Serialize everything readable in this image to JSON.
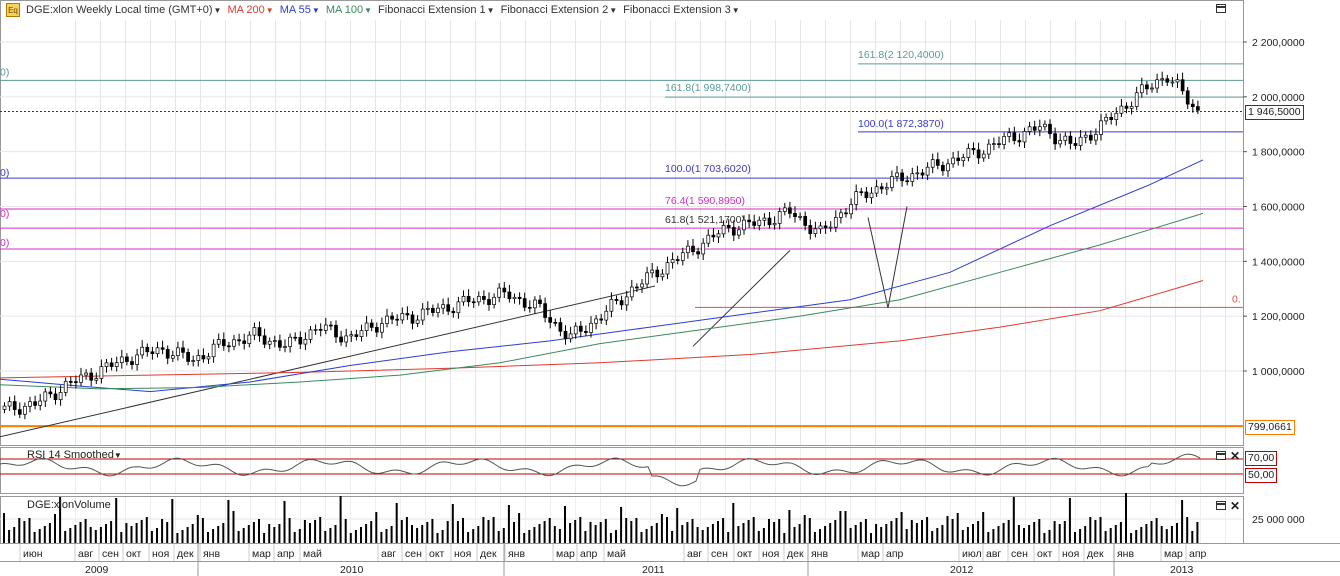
{
  "toolbar": {
    "symbol_label": "DGE:xlon Weekly Local time (GMT+0)",
    "ma200_label": "MA 200",
    "ma55_label": "MA 55",
    "ma100_label": "MA 100",
    "fib1_label": "Fibonacci Extension 1",
    "fib2_label": "Fibonacci Extension 2",
    "fib3_label": "Fibonacci Extension 3",
    "logo": "Eq"
  },
  "colors": {
    "ma200": "#e03a2f",
    "ma55": "#2a3fd1",
    "ma100": "#3a8a5a",
    "candle": "#000000",
    "last_price": "#c00000",
    "support": "#ff7a00",
    "rsi_line": "#555555",
    "rsi_levels": "#c00000",
    "fib_teal": "#5a9a9a",
    "fib_blue": "#3a3ad0",
    "fib_magenta": "#d030c0",
    "fib_red": "#e05040"
  },
  "price_axis": {
    "ticks": [
      "2 200,0000",
      "2 000,0000",
      "1 800,0000",
      "1 600,0000",
      "1 400,0000",
      "1 200,0000",
      "1 000,0000"
    ],
    "last_price": "1 946,5000",
    "support_price": "799,0661"
  },
  "fib_labels": {
    "f1618a": "161.8(2 120,4000)",
    "f1618b": "161.8(1 998,7400)",
    "f100a": "100.0(1 872,3870)",
    "f100b": "100.0(1 703,6020)",
    "f764": "76.4(1 590,8950)",
    "f618": "61.8(1 521,1700)",
    "f0": "0.",
    "left_a": "0)",
    "left_b": "0)",
    "left_c": "0)",
    "left_d": "0)"
  },
  "rsi": {
    "title": "RSI 14 Smoothed",
    "upper": "70,00",
    "lower": "50,00"
  },
  "volume": {
    "title": "DGE:xlonVolume",
    "tick": "25 000 000"
  },
  "time_axis": {
    "months": [
      "июн",
      "авг",
      "сен",
      "окт",
      "ноя",
      "дек",
      "янв",
      "мар",
      "апр",
      "май",
      "авг",
      "сен",
      "окт",
      "ноя",
      "дек",
      "янв",
      "мар",
      "апр",
      "май",
      "авг",
      "сен",
      "окт",
      "ноя",
      "дек",
      "янв",
      "мар",
      "апр",
      "июл",
      "авг",
      "сен",
      "окт",
      "ноя",
      "дек",
      "янв",
      "мар",
      "апр"
    ],
    "years": [
      "2009",
      "2010",
      "2011",
      "2012",
      "2013"
    ]
  },
  "chart_data": {
    "type": "candlestick",
    "title": "DGE:xlon Weekly",
    "ylim": [
      750,
      2330
    ],
    "series": [
      {
        "name": "MA 200",
        "values": [
          970,
          1000,
          1040,
          1100,
          1180,
          1250,
          1330
        ]
      },
      {
        "name": "MA 55",
        "values": [
          960,
          1000,
          1100,
          1180,
          1230,
          1330,
          1500,
          1770
        ]
      },
      {
        "name": "MA 100",
        "values": [
          940,
          960,
          1010,
          1120,
          1220,
          1340,
          1470,
          1575
        ]
      }
    ],
    "close_weekly_approx": [
      860,
      880,
      950,
      1000,
      1050,
      1080,
      1040,
      1100,
      1130,
      1090,
      1160,
      1120,
      1180,
      1200,
      1230,
      1260,
      1280,
      1230,
      1120,
      1200,
      1300,
      1380,
      1450,
      1520,
      1540,
      1580,
      1500,
      1620,
      1680,
      1720,
      1760,
      1800,
      1850,
      1890,
      1820,
      1900,
      2000,
      2080,
      1946.5
    ],
    "last_price": 1946.5,
    "horizontal_level": 799.0661,
    "fibonacci_levels": [
      2120.4,
      1998.74,
      1872.387,
      1703.602,
      1590.895,
      1521.17
    ],
    "rsi_levels": [
      70,
      50
    ],
    "volume_tick": 25000000
  }
}
